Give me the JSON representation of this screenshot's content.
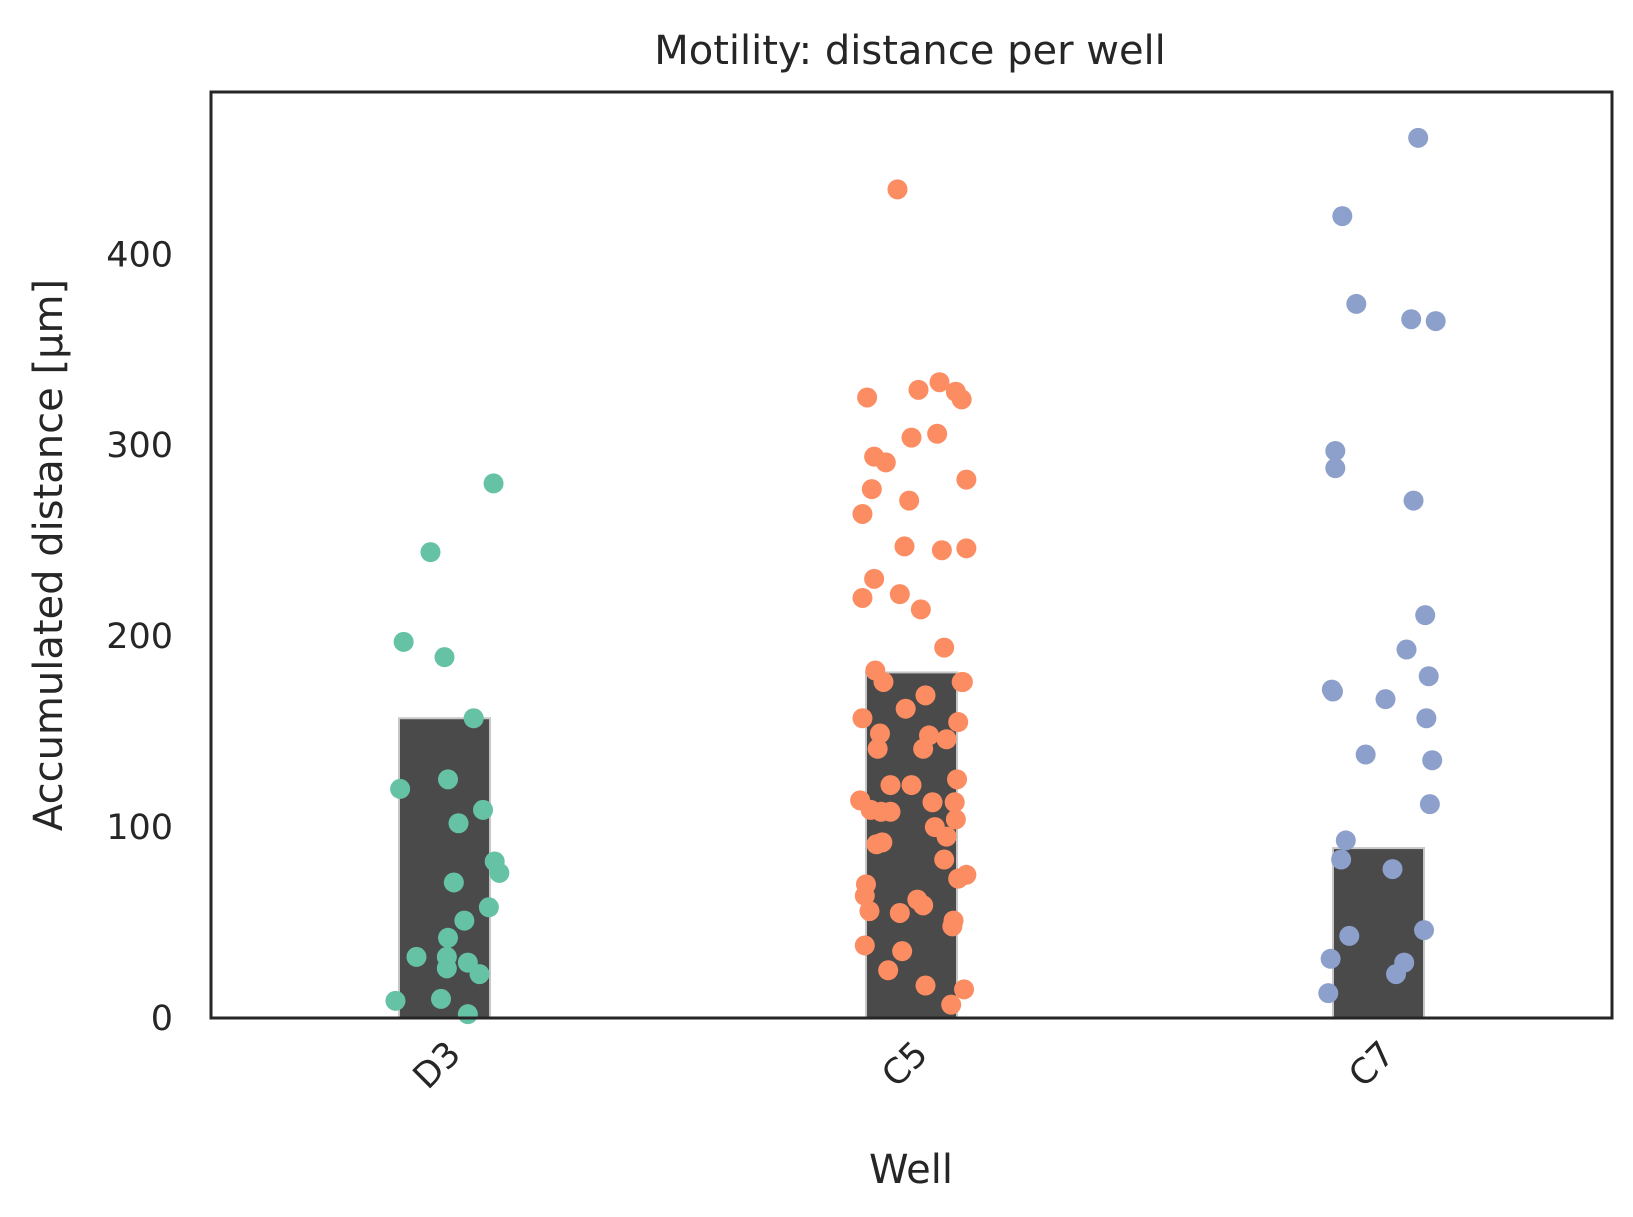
{
  "chart_data": {
    "type": "bar",
    "title": "Motility: distance per well",
    "xlabel": "Well",
    "ylabel": "Accumulated distance [µm]",
    "categories": [
      "D3",
      "C5",
      "C7"
    ],
    "values": [
      157,
      181,
      89
    ],
    "ylim": [
      0,
      485
    ],
    "yticks": [
      0,
      100,
      200,
      300,
      400
    ],
    "grid": false,
    "bar_color": "#4a4a4a",
    "bar_edge_color": "#c8c8c8",
    "point_colors": [
      "#66c2a5",
      "#fc8d62",
      "#8da0cb"
    ],
    "points": [
      [
        {
          "dx": -0.42,
          "y": 9
        },
        {
          "dx": -0.38,
          "y": 120
        },
        {
          "dx": -0.35,
          "y": 197
        },
        {
          "dx": -0.24,
          "y": 32
        },
        {
          "dx": -0.12,
          "y": 244
        },
        {
          "dx": -0.03,
          "y": 10
        },
        {
          "dx": 0.0,
          "y": 189
        },
        {
          "dx": 0.02,
          "y": 26
        },
        {
          "dx": 0.02,
          "y": 32
        },
        {
          "dx": 0.03,
          "y": 42
        },
        {
          "dx": 0.03,
          "y": 125
        },
        {
          "dx": 0.08,
          "y": 71
        },
        {
          "dx": 0.12,
          "y": 102
        },
        {
          "dx": 0.17,
          "y": 51
        },
        {
          "dx": 0.2,
          "y": 29
        },
        {
          "dx": 0.2,
          "y": 2
        },
        {
          "dx": 0.25,
          "y": 157
        },
        {
          "dx": 0.3,
          "y": 23
        },
        {
          "dx": 0.33,
          "y": 109
        },
        {
          "dx": 0.38,
          "y": 58
        },
        {
          "dx": 0.43,
          "y": 82
        },
        {
          "dx": 0.47,
          "y": 76
        },
        {
          "dx": 0.42,
          "y": 280
        }
      ],
      [
        {
          "dx": -0.44,
          "y": 114
        },
        {
          "dx": -0.42,
          "y": 157
        },
        {
          "dx": -0.42,
          "y": 264
        },
        {
          "dx": -0.42,
          "y": 220
        },
        {
          "dx": -0.4,
          "y": 38
        },
        {
          "dx": -0.4,
          "y": 64
        },
        {
          "dx": -0.39,
          "y": 70
        },
        {
          "dx": -0.38,
          "y": 325
        },
        {
          "dx": -0.36,
          "y": 56
        },
        {
          "dx": -0.35,
          "y": 109
        },
        {
          "dx": -0.34,
          "y": 277
        },
        {
          "dx": -0.32,
          "y": 294
        },
        {
          "dx": -0.32,
          "y": 230
        },
        {
          "dx": -0.31,
          "y": 182
        },
        {
          "dx": -0.3,
          "y": 91
        },
        {
          "dx": -0.29,
          "y": 141
        },
        {
          "dx": -0.27,
          "y": 149
        },
        {
          "dx": -0.26,
          "y": 108
        },
        {
          "dx": -0.25,
          "y": 92
        },
        {
          "dx": -0.24,
          "y": 176
        },
        {
          "dx": -0.22,
          "y": 291
        },
        {
          "dx": -0.2,
          "y": 25
        },
        {
          "dx": -0.18,
          "y": 108
        },
        {
          "dx": -0.18,
          "y": 122
        },
        {
          "dx": -0.1,
          "y": 222
        },
        {
          "dx": -0.1,
          "y": 55
        },
        {
          "dx": -0.08,
          "y": 35
        },
        {
          "dx": -0.06,
          "y": 247
        },
        {
          "dx": -0.05,
          "y": 162
        },
        {
          "dx": -0.02,
          "y": 271
        },
        {
          "dx": 0.0,
          "y": 304
        },
        {
          "dx": 0.0,
          "y": 122
        },
        {
          "dx": 0.05,
          "y": 62
        },
        {
          "dx": 0.08,
          "y": 214
        },
        {
          "dx": 0.1,
          "y": 59
        },
        {
          "dx": 0.1,
          "y": 141
        },
        {
          "dx": 0.12,
          "y": 17
        },
        {
          "dx": 0.12,
          "y": 169
        },
        {
          "dx": 0.15,
          "y": 148
        },
        {
          "dx": 0.18,
          "y": 113
        },
        {
          "dx": 0.2,
          "y": 100
        },
        {
          "dx": 0.22,
          "y": 306
        },
        {
          "dx": 0.26,
          "y": 245
        },
        {
          "dx": 0.28,
          "y": 194
        },
        {
          "dx": 0.28,
          "y": 83
        },
        {
          "dx": 0.3,
          "y": 146
        },
        {
          "dx": 0.3,
          "y": 95
        },
        {
          "dx": 0.34,
          "y": 7
        },
        {
          "dx": 0.35,
          "y": 48
        },
        {
          "dx": 0.36,
          "y": 51
        },
        {
          "dx": 0.37,
          "y": 113
        },
        {
          "dx": 0.38,
          "y": 104
        },
        {
          "dx": 0.39,
          "y": 125
        },
        {
          "dx": 0.4,
          "y": 155
        },
        {
          "dx": 0.4,
          "y": 73
        },
        {
          "dx": 0.44,
          "y": 176
        },
        {
          "dx": 0.45,
          "y": 15
        },
        {
          "dx": 0.47,
          "y": 75
        },
        {
          "dx": 0.47,
          "y": 246
        },
        {
          "dx": 0.47,
          "y": 282
        },
        {
          "dx": 0.43,
          "y": 176
        },
        {
          "dx": 0.43,
          "y": 324
        },
        {
          "dx": 0.38,
          "y": 328
        },
        {
          "dx": 0.24,
          "y": 333
        },
        {
          "dx": 0.06,
          "y": 329
        },
        {
          "dx": -0.12,
          "y": 434
        }
      ],
      [
        {
          "dx": -0.43,
          "y": 13
        },
        {
          "dx": -0.41,
          "y": 31
        },
        {
          "dx": -0.4,
          "y": 172
        },
        {
          "dx": -0.39,
          "y": 171
        },
        {
          "dx": -0.37,
          "y": 297
        },
        {
          "dx": -0.37,
          "y": 288
        },
        {
          "dx": -0.32,
          "y": 83
        },
        {
          "dx": -0.31,
          "y": 420
        },
        {
          "dx": -0.28,
          "y": 93
        },
        {
          "dx": -0.25,
          "y": 43
        },
        {
          "dx": -0.19,
          "y": 374
        },
        {
          "dx": -0.11,
          "y": 138
        },
        {
          "dx": 0.06,
          "y": 167
        },
        {
          "dx": 0.12,
          "y": 78
        },
        {
          "dx": 0.15,
          "y": 23
        },
        {
          "dx": 0.22,
          "y": 29
        },
        {
          "dx": 0.24,
          "y": 193
        },
        {
          "dx": 0.28,
          "y": 366
        },
        {
          "dx": 0.3,
          "y": 271
        },
        {
          "dx": 0.34,
          "y": 461
        },
        {
          "dx": 0.39,
          "y": 46
        },
        {
          "dx": 0.4,
          "y": 211
        },
        {
          "dx": 0.41,
          "y": 157
        },
        {
          "dx": 0.43,
          "y": 179
        },
        {
          "dx": 0.44,
          "y": 112
        },
        {
          "dx": 0.46,
          "y": 135
        },
        {
          "dx": 0.49,
          "y": 365
        }
      ]
    ]
  }
}
